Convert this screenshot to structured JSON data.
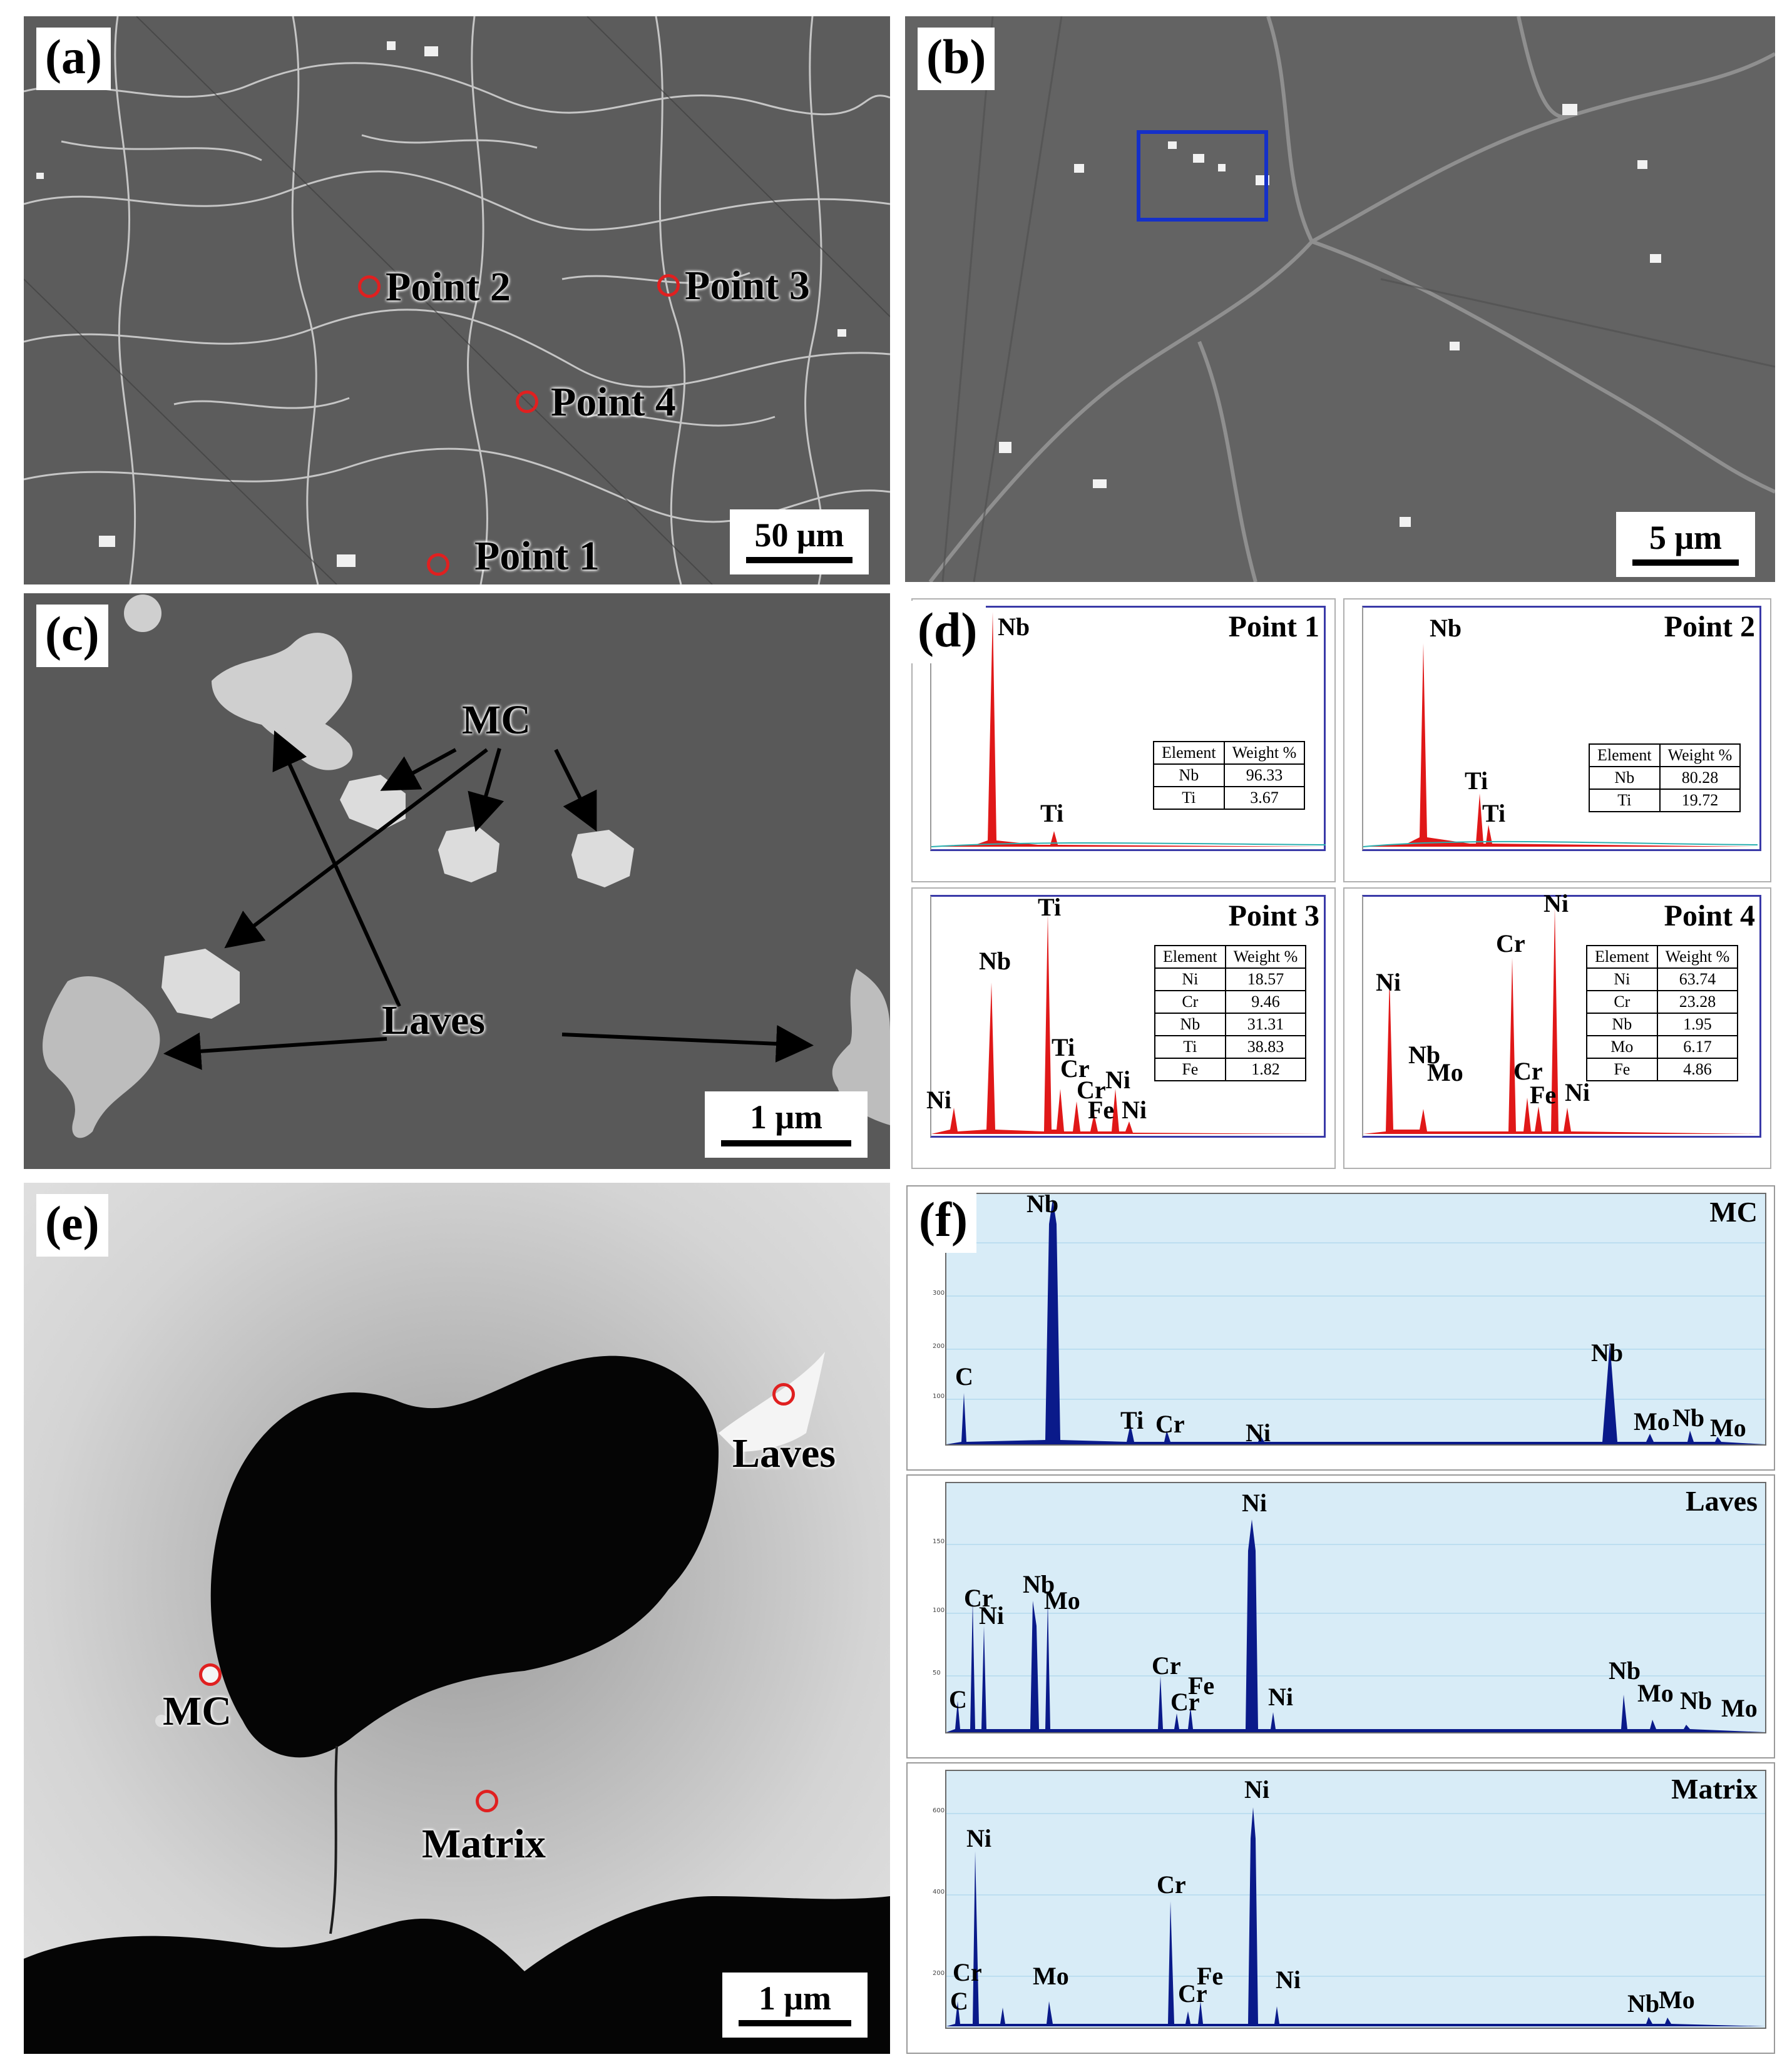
{
  "panels": {
    "a": {
      "label": "(a)",
      "scale_bar": "50 μm",
      "points": [
        "Point 1",
        "Point 2",
        "Point 3",
        "Point 4"
      ]
    },
    "b": {
      "label": "(b)",
      "scale_bar": "5 μm"
    },
    "c": {
      "label": "(c)",
      "scale_bar": "1 μm",
      "annotations": [
        "MC",
        "Laves"
      ]
    },
    "d": {
      "label": "(d)",
      "spectra": [
        {
          "title": "Point 1",
          "peaks": [
            "Nb",
            "Ti"
          ],
          "table": {
            "header": [
              "Element",
              "Weight %"
            ],
            "rows": [
              [
                "Nb",
                "96.33"
              ],
              [
                "Ti",
                "3.67"
              ]
            ]
          }
        },
        {
          "title": "Point 2",
          "peaks": [
            "Nb",
            "Ti",
            "Ti"
          ],
          "table": {
            "header": [
              "Element",
              "Weight %"
            ],
            "rows": [
              [
                "Nb",
                "80.28"
              ],
              [
                "Ti",
                "19.72"
              ]
            ]
          }
        },
        {
          "title": "Point 3",
          "peaks": [
            "Ti",
            "Nb",
            "Ni",
            "Ti",
            "Cr",
            "Cr",
            "Fe",
            "Ni",
            "Ni"
          ],
          "table": {
            "header": [
              "Element",
              "Weight %"
            ],
            "rows": [
              [
                "Ni",
                "18.57"
              ],
              [
                "Cr",
                "9.46"
              ],
              [
                "Nb",
                "31.31"
              ],
              [
                "Ti",
                "38.83"
              ],
              [
                "Fe",
                "1.82"
              ]
            ]
          }
        },
        {
          "title": "Point 4",
          "peaks": [
            "Ni",
            "Cr",
            "Ni",
            "Nb",
            "Mo",
            "Cr",
            "Fe",
            "Ni"
          ],
          "table": {
            "header": [
              "Element",
              "Weight %"
            ],
            "rows": [
              [
                "Ni",
                "63.74"
              ],
              [
                "Cr",
                "23.28"
              ],
              [
                "Nb",
                "1.95"
              ],
              [
                "Mo",
                "6.17"
              ],
              [
                "Fe",
                "4.86"
              ]
            ]
          }
        }
      ]
    },
    "e": {
      "label": "(e)",
      "scale_bar": "1 μm",
      "annotations": [
        "Laves",
        "MC",
        "Matrix"
      ]
    },
    "f": {
      "label": "(f)",
      "spectra": [
        {
          "title": "MC",
          "peaks": [
            "Nb",
            "C",
            "Ti",
            "Cr",
            "Ni",
            "Nb",
            "Mo",
            "Nb",
            "Mo"
          ],
          "ticks": [
            "400",
            "300",
            "200",
            "100"
          ]
        },
        {
          "title": "Laves",
          "peaks": [
            "Ni",
            "Nb",
            "Cr",
            "Mo",
            "Ni",
            "C",
            "Cr",
            "Fe",
            "Cr",
            "Ni",
            "Nb",
            "Mo",
            "Nb",
            "Mo"
          ],
          "ticks": [
            "150",
            "100",
            "50"
          ]
        },
        {
          "title": "Matrix",
          "peaks": [
            "Ni",
            "Ni",
            "Cr",
            "Mo",
            "Cr",
            "C",
            "Fe",
            "Cr",
            "Ni",
            "Nb",
            "Mo"
          ],
          "ticks": [
            "600",
            "400",
            "200"
          ]
        }
      ]
    }
  }
}
